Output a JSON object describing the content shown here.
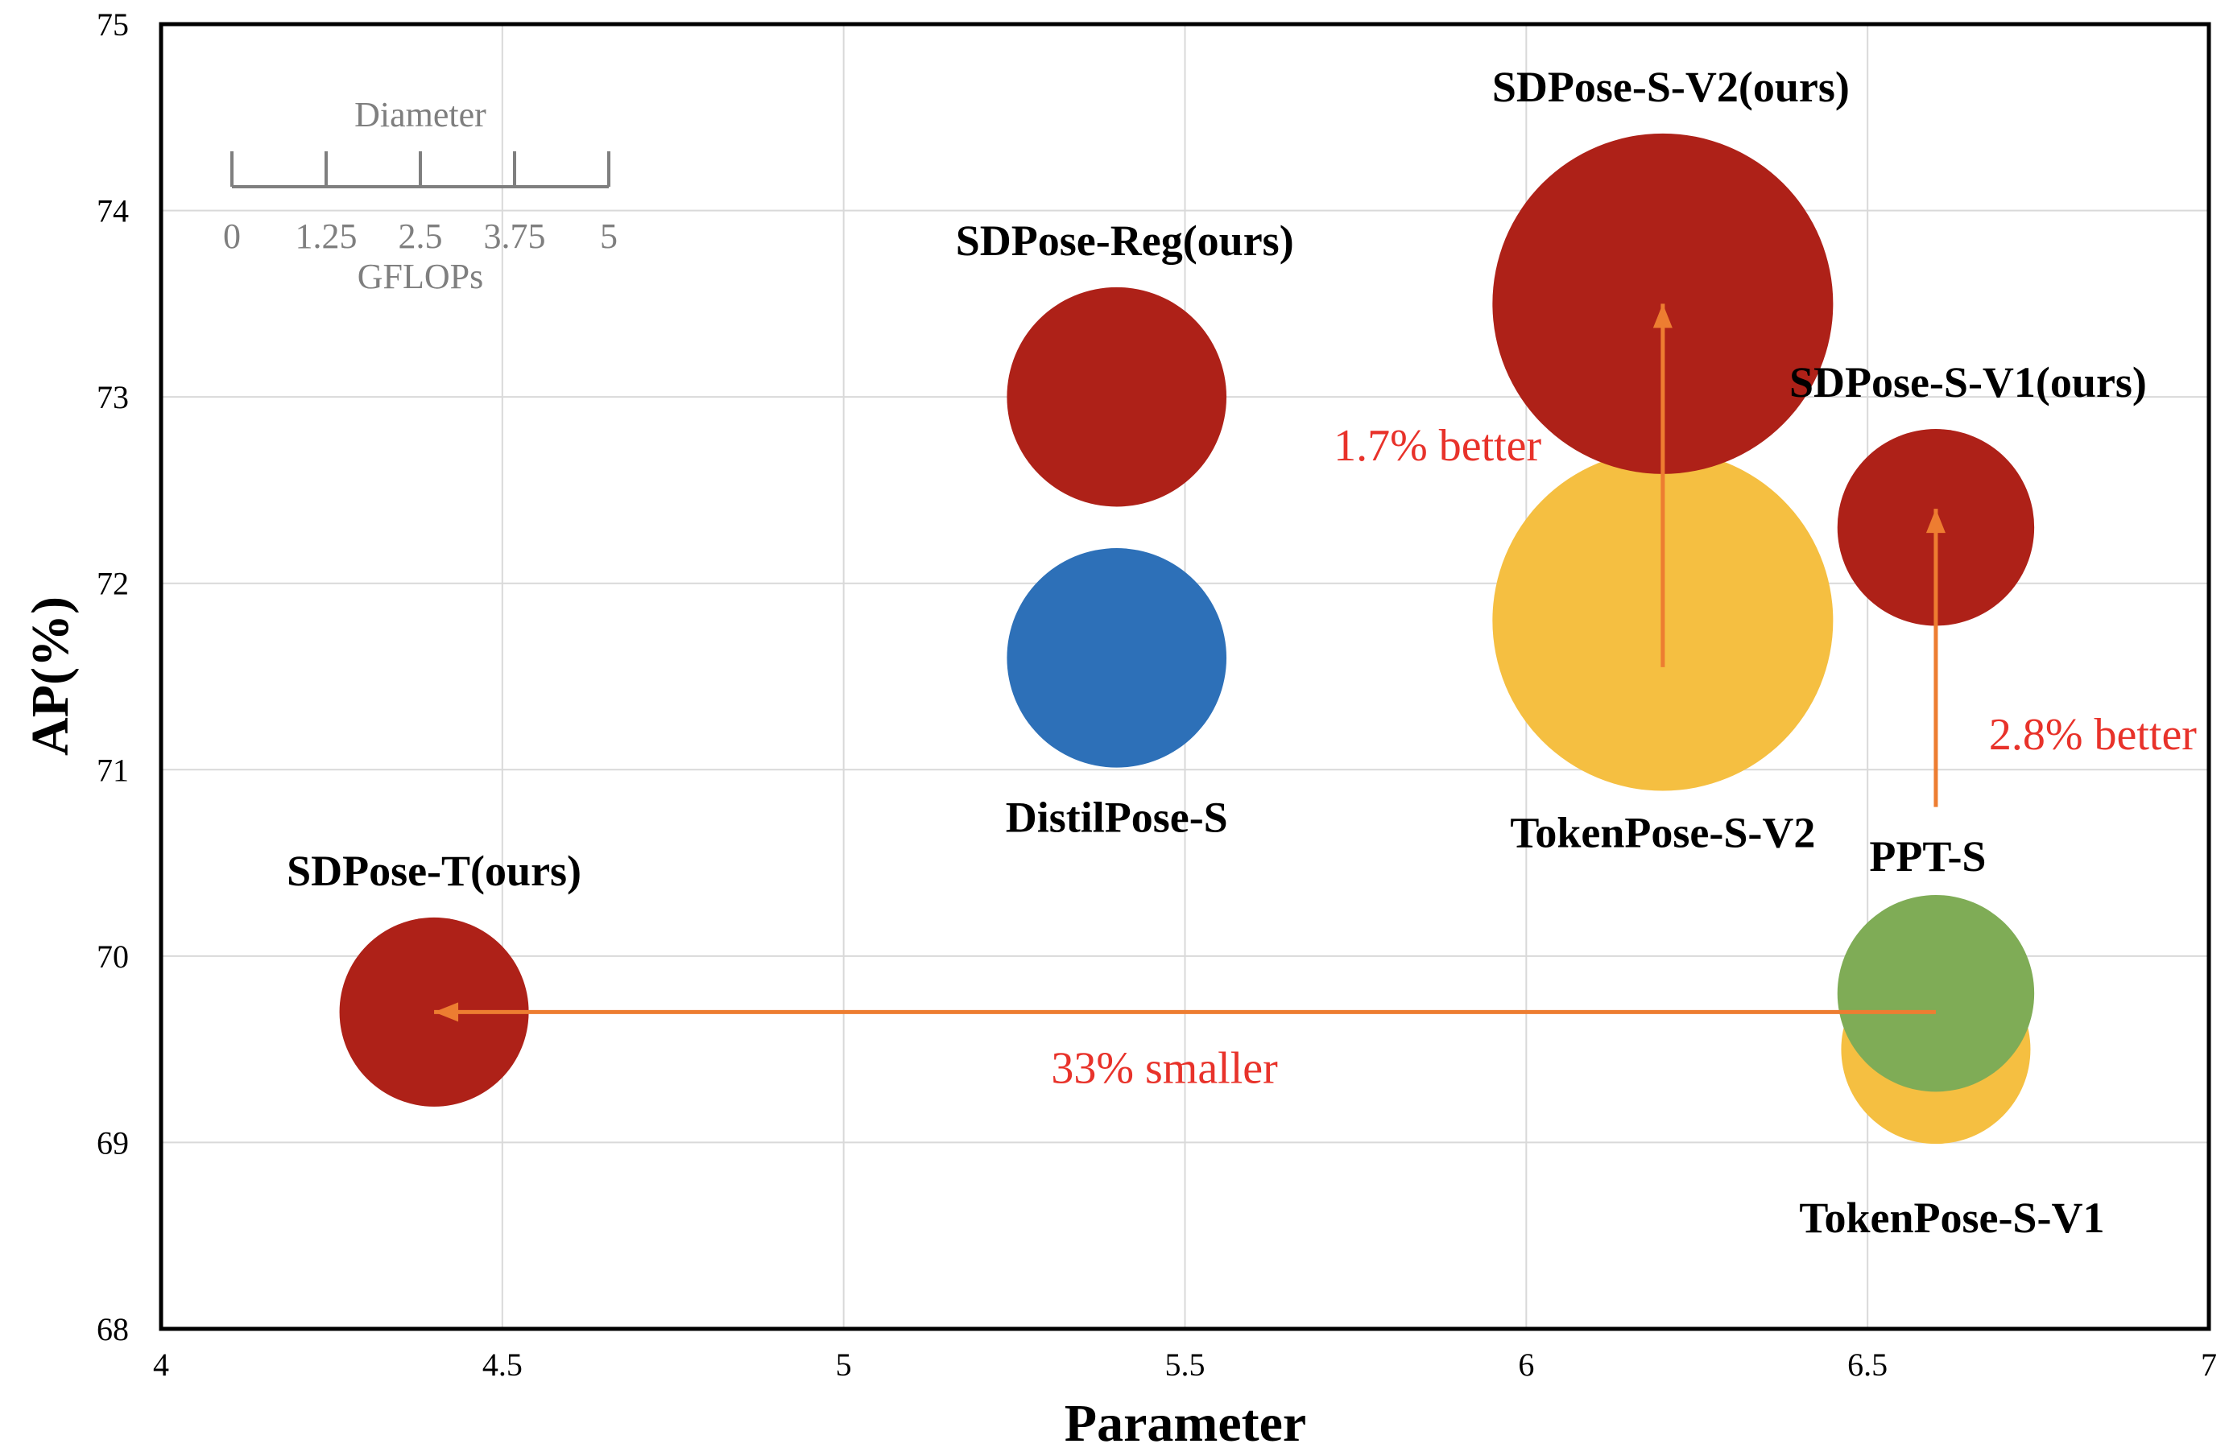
{
  "chart_data": {
    "type": "bubble",
    "title": "",
    "xlabel": "Parameter",
    "ylabel": "AP(%)",
    "xlim": [
      4,
      7
    ],
    "ylim": [
      68,
      75
    ],
    "xticks": [
      "4",
      "4.5",
      "5",
      "5.5",
      "6",
      "6.5",
      "7"
    ],
    "yticks": [
      "68",
      "69",
      "70",
      "71",
      "72",
      "73",
      "74",
      "75"
    ],
    "grid": true,
    "size_unit": "GFLOPs",
    "series": [
      {
        "name": "TokenPose-S-V2",
        "x": 6.2,
        "y": 71.8,
        "gflops": 4.5,
        "color": "#f5bf41",
        "label_pos": "bottom"
      },
      {
        "name": "SDPose-S-V2(ours)",
        "x": 6.2,
        "y": 73.5,
        "gflops": 4.5,
        "color": "#ae2118",
        "label_pos": "top"
      },
      {
        "name": "TokenPose-S-V1",
        "x": 6.6,
        "y": 69.5,
        "gflops": 2.5,
        "color": "#f5bf41",
        "label_pos": "bottom"
      },
      {
        "name": "PPT-S",
        "x": 6.6,
        "y": 69.8,
        "gflops": 2.6,
        "color": "#7fac56",
        "label_pos": "top"
      },
      {
        "name": "SDPose-S-V1(ours)",
        "x": 6.6,
        "y": 72.3,
        "gflops": 2.6,
        "color": "#ae2118",
        "label_pos": "top"
      },
      {
        "name": "SDPose-Reg(ours)",
        "x": 5.4,
        "y": 73.0,
        "gflops": 2.9,
        "color": "#ae2118",
        "label_pos": "top"
      },
      {
        "name": "DistilPose-S",
        "x": 5.4,
        "y": 71.6,
        "gflops": 2.9,
        "color": "#2d70b8",
        "label_pos": "bottom"
      },
      {
        "name": "SDPose-T(ours)",
        "x": 4.4,
        "y": 69.7,
        "gflops": 2.5,
        "color": "#ae2118",
        "label_pos": "top"
      }
    ],
    "annotations": [
      {
        "text": "1.7% better",
        "from": [
          6.2,
          71.55
        ],
        "to": [
          6.2,
          73.5
        ]
      },
      {
        "text": "2.8% better",
        "from": [
          6.6,
          70.8
        ],
        "to": [
          6.6,
          72.4
        ]
      },
      {
        "text": "33% smaller",
        "from": [
          6.6,
          69.7
        ],
        "to": [
          4.4,
          69.7
        ]
      }
    ],
    "legend": {
      "title": "Diameter",
      "caption": "GFLOPs",
      "ticks": [
        "0",
        "1.25",
        "2.5",
        "3.75",
        "5"
      ],
      "placement": "top-left"
    },
    "colors": {
      "ours": "#ae2118",
      "tokenpose": "#f5bf41",
      "distilpose": "#2d70b8",
      "ppt": "#7fac56",
      "arrow": "#ed7d31",
      "annotation_text": "#e8322a"
    }
  }
}
